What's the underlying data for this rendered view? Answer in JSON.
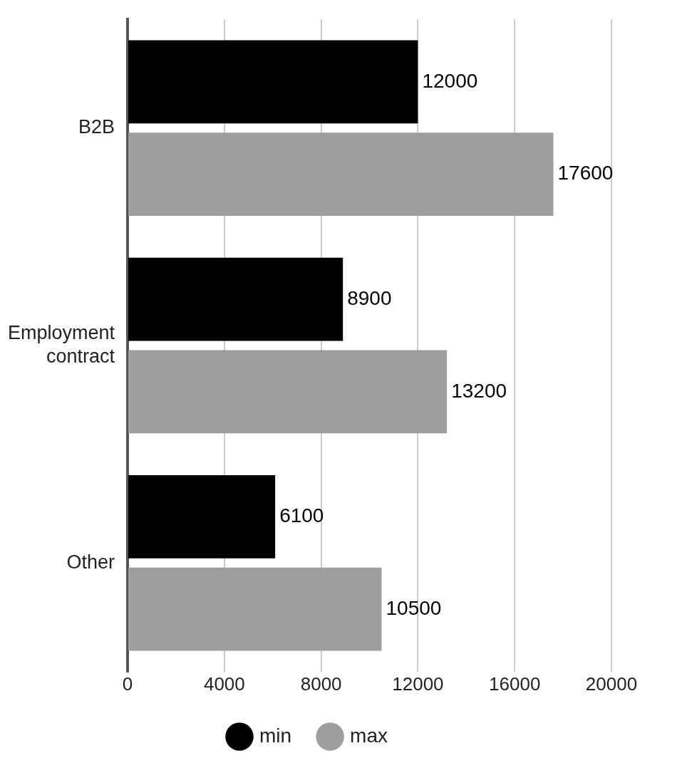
{
  "chart_data": {
    "type": "bar",
    "orientation": "horizontal",
    "categories": [
      "B2B",
      "Employment contract",
      "Other"
    ],
    "series": [
      {
        "name": "min",
        "color": "#000000",
        "values": [
          12000,
          8900,
          6100
        ]
      },
      {
        "name": "max",
        "color": "#9e9e9e",
        "values": [
          17600,
          13200,
          10500
        ]
      }
    ],
    "xlim": [
      0,
      20000
    ],
    "xticks": [
      0,
      4000,
      8000,
      12000,
      16000,
      20000
    ],
    "grid": "x",
    "legend": "bottom",
    "data_labels": true
  }
}
